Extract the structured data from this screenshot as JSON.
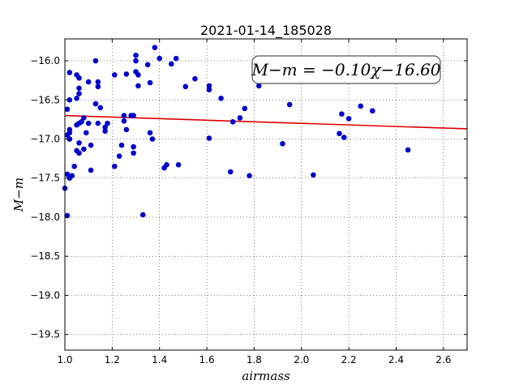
{
  "chart_data": {
    "type": "scatter",
    "title": "2021-01-14_185028",
    "xlabel": "airmass",
    "ylabel": "M−m",
    "xlim": [
      1.0,
      2.7
    ],
    "ylim": [
      -19.7,
      -15.72
    ],
    "y_inverted": true,
    "grid": true,
    "xticks": [
      1.0,
      1.2,
      1.4,
      1.6,
      1.8,
      2.0,
      2.2,
      2.4,
      2.6
    ],
    "xtick_labels": [
      "1.0",
      "1.2",
      "1.4",
      "1.6",
      "1.8",
      "2.0",
      "2.2",
      "2.4",
      "2.6"
    ],
    "yticks": [
      -16.0,
      -16.5,
      -17.0,
      -17.5,
      -18.0,
      -18.5,
      -19.0,
      -19.5
    ],
    "ytick_labels": [
      "−16.0",
      "−16.5",
      "−17.0",
      "−17.5",
      "−18.0",
      "−18.5",
      "−19.0",
      "−19.5"
    ],
    "annotation": "M−m = −0.10χ−16.60",
    "fit": {
      "slope": -0.1,
      "intercept": -16.6,
      "color": "#dd0000"
    },
    "marker_color": "#0000cc",
    "points": [
      [
        1.0,
        -17.63
      ],
      [
        1.01,
        -16.62
      ],
      [
        1.01,
        -16.95
      ],
      [
        1.01,
        -17.45
      ],
      [
        1.01,
        -17.98
      ],
      [
        1.02,
        -16.15
      ],
      [
        1.02,
        -16.5
      ],
      [
        1.02,
        -16.88
      ],
      [
        1.02,
        -16.92
      ],
      [
        1.02,
        -17.0
      ],
      [
        1.02,
        -17.0
      ],
      [
        1.02,
        -17.5
      ],
      [
        1.03,
        -17.47
      ],
      [
        1.04,
        -17.35
      ],
      [
        1.05,
        -16.18
      ],
      [
        1.05,
        -16.48
      ],
      [
        1.05,
        -17.15
      ],
      [
        1.05,
        -16.82
      ],
      [
        1.06,
        -16.35
      ],
      [
        1.06,
        -16.22
      ],
      [
        1.06,
        -16.42
      ],
      [
        1.06,
        -16.8
      ],
      [
        1.06,
        -17.05
      ],
      [
        1.06,
        -17.18
      ],
      [
        1.07,
        -16.78
      ],
      [
        1.08,
        -16.73
      ],
      [
        1.08,
        -17.13
      ],
      [
        1.09,
        -16.92
      ],
      [
        1.1,
        -16.27
      ],
      [
        1.1,
        -16.8
      ],
      [
        1.11,
        -17.08
      ],
      [
        1.11,
        -17.4
      ],
      [
        1.13,
        -16.0
      ],
      [
        1.13,
        -16.55
      ],
      [
        1.14,
        -16.8
      ],
      [
        1.14,
        -16.33
      ],
      [
        1.14,
        -16.27
      ],
      [
        1.15,
        -16.6
      ],
      [
        1.17,
        -16.85
      ],
      [
        1.17,
        -16.9
      ],
      [
        1.18,
        -16.8
      ],
      [
        1.21,
        -16.18
      ],
      [
        1.21,
        -17.35
      ],
      [
        1.23,
        -17.22
      ],
      [
        1.24,
        -17.08
      ],
      [
        1.25,
        -16.7
      ],
      [
        1.25,
        -16.77
      ],
      [
        1.26,
        -16.17
      ],
      [
        1.26,
        -16.88
      ],
      [
        1.28,
        -16.7
      ],
      [
        1.29,
        -16.7
      ],
      [
        1.29,
        -17.18
      ],
      [
        1.29,
        -17.1
      ],
      [
        1.3,
        -15.93
      ],
      [
        1.3,
        -16.0
      ],
      [
        1.3,
        -16.14
      ],
      [
        1.31,
        -16.32
      ],
      [
        1.31,
        -16.18
      ],
      [
        1.33,
        -17.97
      ],
      [
        1.35,
        -16.05
      ],
      [
        1.36,
        -16.28
      ],
      [
        1.36,
        -16.92
      ],
      [
        1.37,
        -17.0
      ],
      [
        1.38,
        -15.83
      ],
      [
        1.4,
        -15.97
      ],
      [
        1.42,
        -17.37
      ],
      [
        1.43,
        -17.33
      ],
      [
        1.45,
        -16.04
      ],
      [
        1.47,
        -15.97
      ],
      [
        1.48,
        -17.33
      ],
      [
        1.51,
        -16.33
      ],
      [
        1.55,
        -16.23
      ],
      [
        1.61,
        -16.32
      ],
      [
        1.61,
        -16.37
      ],
      [
        1.61,
        -16.99
      ],
      [
        1.66,
        -16.48
      ],
      [
        1.7,
        -17.42
      ],
      [
        1.71,
        -16.78
      ],
      [
        1.74,
        -16.73
      ],
      [
        1.76,
        -16.61
      ],
      [
        1.78,
        -17.47
      ],
      [
        1.82,
        -16.32
      ],
      [
        1.92,
        -17.06
      ],
      [
        1.95,
        -16.56
      ],
      [
        2.05,
        -17.46
      ],
      [
        2.16,
        -16.93
      ],
      [
        2.17,
        -16.68
      ],
      [
        2.18,
        -16.98
      ],
      [
        2.2,
        -16.74
      ],
      [
        2.25,
        -16.58
      ],
      [
        2.3,
        -16.64
      ],
      [
        2.45,
        -17.14
      ]
    ]
  }
}
